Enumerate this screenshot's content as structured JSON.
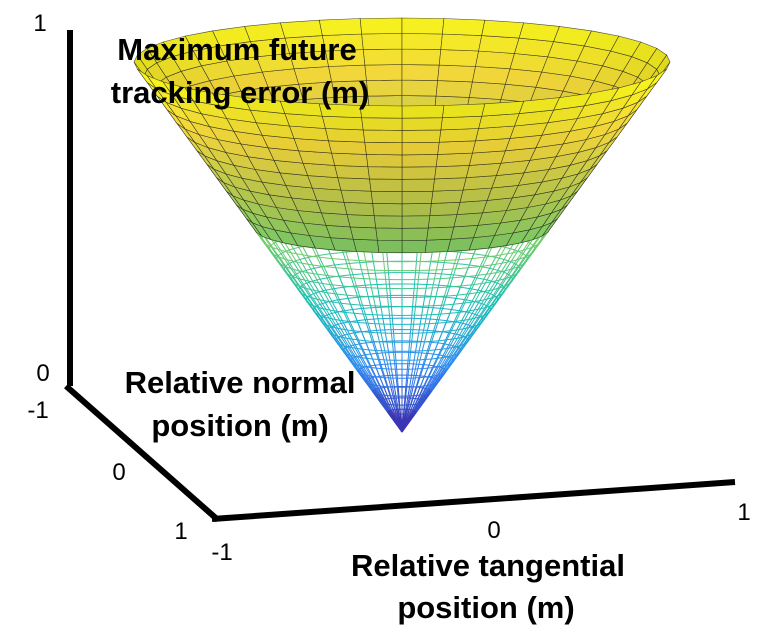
{
  "chart_data": {
    "type": "surface",
    "title": "",
    "zlabel": [
      "Maximum future",
      "tracking error (m)"
    ],
    "ylabel": [
      "Relative normal",
      "position (m)"
    ],
    "xlabel": [
      "Relative tangential",
      "position (m)"
    ],
    "x_ticks": [
      "-1",
      "0",
      "1"
    ],
    "y_ticks": [
      "-1",
      "0",
      "1"
    ],
    "z_ticks": [
      "0",
      "1"
    ],
    "xlim": [
      -1,
      1
    ],
    "ylim": [
      -1,
      1
    ],
    "zlim": [
      0,
      1
    ],
    "surfaces": [
      {
        "name": "cone-mesh",
        "style": "wireframe",
        "equation": "z = sqrt(x^2 + y^2)",
        "r_range": [
          0,
          0.55
        ],
        "colormap": "parula"
      },
      {
        "name": "cone-solid",
        "style": "faceted",
        "equation": "z = sqrt(x^2 + y^2)",
        "r_range": [
          0.55,
          1
        ],
        "colormap": "parula"
      }
    ],
    "colormap_stops": [
      "#3e26a8",
      "#2e87f5",
      "#19bfb7",
      "#6fcc6b",
      "#b7c84e",
      "#f2d63c",
      "#f9fb15"
    ],
    "grid": false
  }
}
